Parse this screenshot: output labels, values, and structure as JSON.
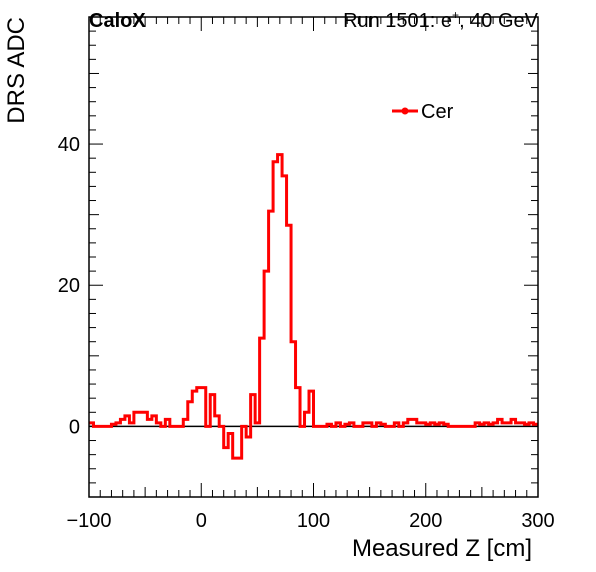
{
  "header": {
    "experiment": "CaloX",
    "run_info_prefix": "Run 1501: e",
    "run_info_sup": "+",
    "run_info_suffix": ", 40 GeV"
  },
  "chart_data": {
    "type": "line",
    "style": "step histogram",
    "xlabel": "Measured Z [cm]",
    "ylabel": "DRS ADC",
    "xlim": [
      -100,
      300
    ],
    "ylim": [
      -10,
      58
    ],
    "x_ticks": [
      -100,
      0,
      100,
      200,
      300
    ],
    "x_tick_labels": [
      "−100",
      "0",
      "100",
      "200",
      "300"
    ],
    "y_ticks": [
      0,
      20,
      40
    ],
    "y_tick_labels": [
      "0",
      "20",
      "40"
    ],
    "grid": false,
    "legend_position": "top-right",
    "zero_line": true,
    "series": [
      {
        "name": "Cer",
        "color": "#ff0000",
        "bin_width": 4,
        "x_start": -100,
        "values": [
          0.5,
          0,
          0,
          0,
          0,
          0.3,
          0.5,
          1,
          1.5,
          0.5,
          2,
          2,
          2,
          1,
          1.5,
          0.5,
          0,
          1,
          0,
          0,
          0,
          1,
          3.5,
          5,
          5.5,
          5.5,
          0,
          4.5,
          1.5,
          0,
          -3,
          -1,
          -4.5,
          -4.5,
          0,
          -1.5,
          4.5,
          0.5,
          12.5,
          22,
          30.5,
          37.5,
          38.5,
          35.5,
          28.5,
          12,
          5.5,
          0,
          2,
          5,
          0,
          0,
          0,
          0.3,
          0,
          0.5,
          0,
          0.3,
          0.5,
          0,
          0,
          0.5,
          0.5,
          0,
          0.5,
          0.3,
          0,
          0,
          0.5,
          0,
          0.5,
          1,
          1,
          0.5,
          0.5,
          0.3,
          0.5,
          0.3,
          0.5,
          0.3,
          0,
          0,
          0,
          0,
          0,
          0,
          0.5,
          0.3,
          0.5,
          0.3,
          0.5,
          1,
          0.5,
          0.5,
          1,
          0.5,
          0.5,
          0.3,
          0.5,
          0.3
        ]
      }
    ]
  }
}
